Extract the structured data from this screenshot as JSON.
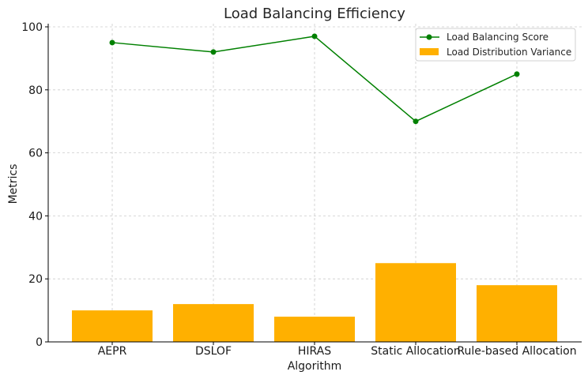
{
  "chart_data": {
    "type": "bar",
    "title": "Load Balancing Efficiency",
    "xlabel": "Algorithm",
    "ylabel": "Metrics",
    "categories": [
      "AEPR",
      "DSLOF",
      "HIRAS",
      "Static Allocation",
      "Rule-based Allocation"
    ],
    "series": [
      {
        "name": "Load Balancing Score",
        "kind": "line",
        "color": "#008000",
        "values": [
          95,
          92,
          97,
          70,
          85
        ]
      },
      {
        "name": "Load Distribution Variance",
        "kind": "bar",
        "color": "#FFB000",
        "values": [
          10,
          12,
          8,
          25,
          18
        ]
      }
    ],
    "yticks": [
      0,
      20,
      40,
      60,
      80,
      100
    ],
    "ylim": [
      0,
      101
    ],
    "grid": true,
    "legend": "top-right"
  }
}
